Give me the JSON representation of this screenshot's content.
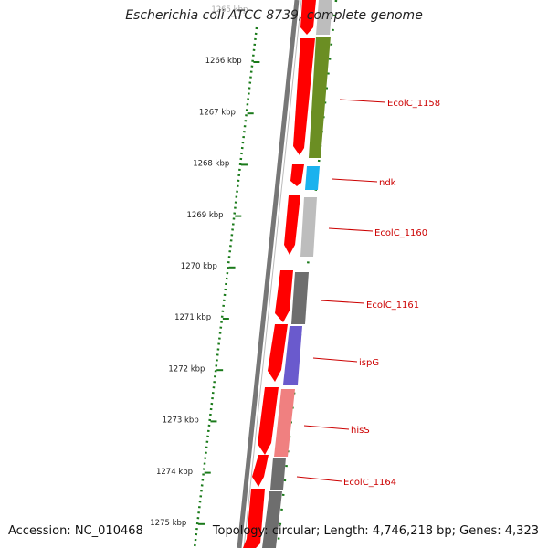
{
  "title": "Escherichia coli ATCC 8739, complete genome",
  "footer": {
    "accession_label": "Accession:",
    "accession": "NC_010468",
    "topology_label": "Topology:",
    "topology": "circular",
    "length_label": "Length:",
    "length": "4,746,218 bp",
    "genes_label": "Genes:",
    "genes": "4,323"
  },
  "colors": {
    "forward_strand": "#ff0000",
    "backbone": "#777777",
    "ticks": "#1a7a1a",
    "gene_label": "#cc0000"
  },
  "scale": {
    "labels": [
      "1265 kbp",
      "1266 kbp",
      "1267 kbp",
      "1268 kbp",
      "1269 kbp",
      "1270 kbp",
      "1271 kbp",
      "1272 kbp",
      "1273 kbp",
      "1274 kbp",
      "1275 kbp"
    ]
  },
  "genes": [
    {
      "name": "EcolC_1158",
      "color": "#6b8e23"
    },
    {
      "name": "ndk",
      "color": "#1ab2ee"
    },
    {
      "name": "EcolC_1160",
      "color": "#bdbdbd"
    },
    {
      "name": "EcolC_1161",
      "color": "#6e6e6e"
    },
    {
      "name": "ispG",
      "color": "#6a5acd"
    },
    {
      "name": "hisS",
      "color": "#f08080"
    },
    {
      "name": "EcolC_1164",
      "color": "#6e6e6e"
    }
  ]
}
